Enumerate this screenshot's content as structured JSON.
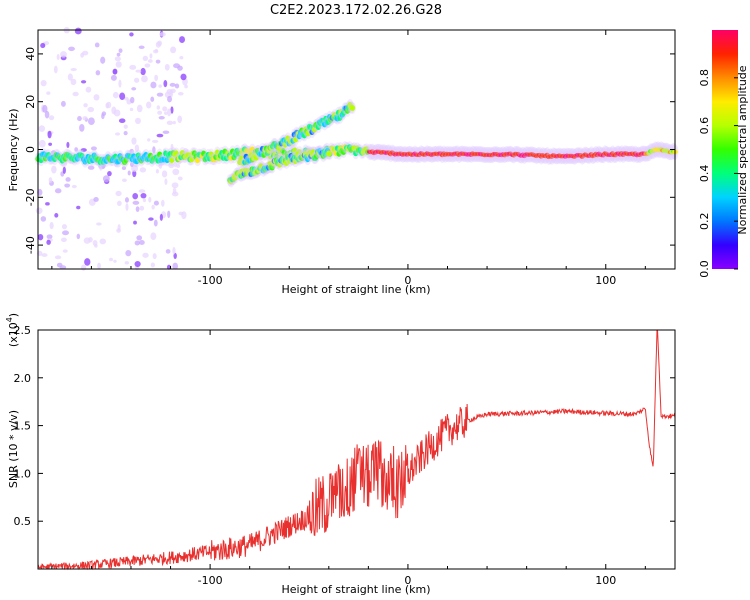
{
  "title": "C2E2.2023.172.02.26.G28",
  "chart_data": [
    {
      "type": "heatmap",
      "xlabel": "Height of straight line (km)",
      "ylabel": "Frequency (Hz)",
      "xlim": [
        -187,
        135
      ],
      "ylim": [
        -50,
        50
      ],
      "x_ticks": [
        -100,
        0,
        100
      ],
      "y_ticks": [
        -40,
        -20,
        0,
        20,
        40
      ],
      "colorbar": {
        "label": "Normalized spectral amplitude",
        "range": [
          0,
          1
        ],
        "ticks": [
          "0.0",
          "0.2",
          "0.4",
          "0.6",
          "0.8"
        ],
        "colors": [
          "#8a00ff",
          "#3300ff",
          "#0077ff",
          "#00d2ff",
          "#00ff7b",
          "#33ff00",
          "#b6ff00",
          "#ffec00",
          "#ff8c00",
          "#ff2200",
          "#ff0066"
        ]
      },
      "ridges": [
        {
          "name": "",
          "x": [
            -187,
            -150,
            -120,
            -100,
            -80,
            -60,
            -40,
            -28,
            -20,
            0,
            20,
            50,
            80,
            100,
            120,
            126,
            135
          ],
          "y": [
            -3,
            -4,
            -3,
            -3,
            -1,
            -2,
            -1,
            0,
            -1,
            -2,
            -2,
            -2,
            -3,
            -2,
            -2,
            0,
            -1
          ]
        },
        {
          "name": "",
          "x": [
            -85,
            -70,
            -55,
            -45,
            -35,
            -28
          ],
          "y": [
            -5,
            0,
            6,
            10,
            14,
            18
          ]
        },
        {
          "name": "",
          "x": [
            -90,
            -75,
            -60,
            -50,
            -40
          ],
          "y": [
            -12,
            -8,
            -4,
            -3,
            -1
          ]
        }
      ]
    },
    {
      "type": "line",
      "xlabel": "Height of straight line (km)",
      "ylabel": "SNR (10 * v/v)",
      "y_multiplier": "(x10",
      "y_multiplier_exp": "4",
      "y_multiplier_close": ")",
      "xlim": [
        -187,
        135
      ],
      "ylim": [
        0,
        2.5
      ],
      "x_ticks": [
        -100,
        0,
        100
      ],
      "y_ticks": [
        "0.5",
        "1.0",
        "1.5",
        "2.0",
        "2.5"
      ],
      "color": "#e8312f",
      "series": [
        {
          "name": "",
          "x": [
            -187,
            -160,
            -140,
            -120,
            -100,
            -80,
            -70,
            -60,
            -50,
            -40,
            -30,
            -25,
            -20,
            -15,
            -10,
            -5,
            0,
            10,
            20,
            30,
            40,
            60,
            80,
            100,
            115,
            120,
            122,
            124,
            126,
            128,
            135
          ],
          "y": [
            0.02,
            0.04,
            0.08,
            0.12,
            0.18,
            0.25,
            0.35,
            0.45,
            0.55,
            0.7,
            0.85,
            1.0,
            0.95,
            1.05,
            0.9,
            0.85,
            1.0,
            1.25,
            1.45,
            1.55,
            1.62,
            1.63,
            1.65,
            1.63,
            1.62,
            1.68,
            1.3,
            1.05,
            2.6,
            1.6,
            1.6
          ]
        }
      ]
    }
  ]
}
